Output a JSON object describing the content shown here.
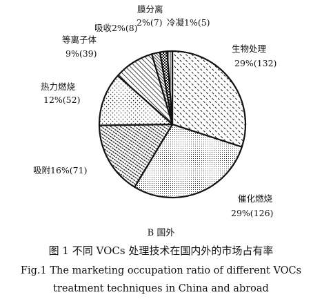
{
  "chart_data": {
    "type": "pie",
    "slices": [
      {
        "label": "生物处理",
        "percent_text": "29%(132)",
        "percent": 29,
        "count": 132,
        "pattern": "diag-dash"
      },
      {
        "label": "催化燃烧",
        "percent_text": "29%(126)",
        "percent": 29,
        "count": 126,
        "pattern": "fine-dots"
      },
      {
        "label": "吸附",
        "percent_text": "16%(71)",
        "percent": 16,
        "count": 71,
        "pattern": "dense-dash"
      },
      {
        "label": "热力燃烧",
        "percent_text": "12%(52)",
        "percent": 12,
        "count": 52,
        "pattern": "sparse-dots"
      },
      {
        "label": "等离子体",
        "percent_text": "9%(39)",
        "percent": 9,
        "count": 39,
        "pattern": "hatch"
      },
      {
        "label": "吸收",
        "percent_text": "2%(8)",
        "percent": 2,
        "count": 8,
        "pattern": "hatch-dense"
      },
      {
        "label": "膜分离",
        "percent_text": "2%(7)",
        "percent": 2,
        "count": 7,
        "pattern": "checker"
      },
      {
        "label": "冷凝",
        "percent_text": "1%(5)",
        "percent": 1,
        "count": 5,
        "pattern": "vertical"
      }
    ],
    "label_texts": {
      "bio_line1": "生物处理",
      "bio_line2": "29%(132)",
      "cat_line1": "催化燃烧",
      "cat_line2": "29%(126)",
      "ads_line1": "吸附16%(71)",
      "therm_line1": "热力燃烧",
      "therm_line2": "12%(52)",
      "plasma_line1": "等离子体",
      "plasma_line2": "9%(39)",
      "abs_line1": "吸收2%(8)",
      "mem_line1": "膜分离",
      "mem_line2": "2%(7)",
      "cond_line1": "冷凝1%(5)"
    }
  },
  "subtitle": "B  国外",
  "caption": {
    "zh": "图 1    不同 VOCs 处理技术在国内外的市场占有率",
    "en_line1": "Fig.1    The marketing occupation ratio of different VOCs",
    "en_line2": "treatment techniques in China and abroad"
  },
  "colors": {
    "ink": "#111111",
    "background": "#ffffff"
  }
}
